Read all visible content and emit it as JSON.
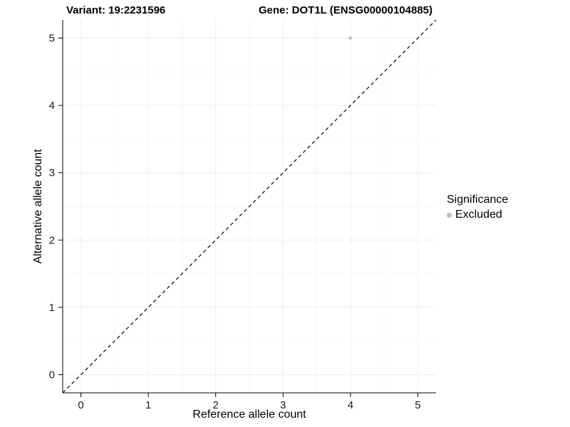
{
  "titles": {
    "variant": "Variant: 19:2231596",
    "gene": "Gene: DOT1L (ENSG00000104885)"
  },
  "chart_data": {
    "type": "scatter",
    "xlabel": "Reference allele count",
    "ylabel": "Alternative allele count",
    "xlim": [
      -0.27,
      5.27
    ],
    "ylim": [
      -0.27,
      5.27
    ],
    "xticks": [
      0,
      1,
      2,
      3,
      4,
      5
    ],
    "yticks": [
      0,
      1,
      2,
      3,
      4,
      5
    ],
    "grid": true,
    "identity_line": {
      "style": "dashed",
      "color": "#000000",
      "from": [
        -0.27,
        -0.27
      ],
      "to": [
        5.27,
        5.27
      ]
    },
    "series": [
      {
        "name": "Excluded",
        "color": "#bdbdbd",
        "points": [
          {
            "x": 4,
            "y": 5
          }
        ]
      }
    ],
    "legend": {
      "title": "Significance",
      "position": "right",
      "entries": [
        {
          "label": "Excluded",
          "color": "#bdbdbd"
        }
      ]
    },
    "colors": {
      "grid_major": "#ededed",
      "grid_minor": "#f6f6f6",
      "axis_line": "#000000",
      "tick_text": "#1a1a1a"
    }
  }
}
